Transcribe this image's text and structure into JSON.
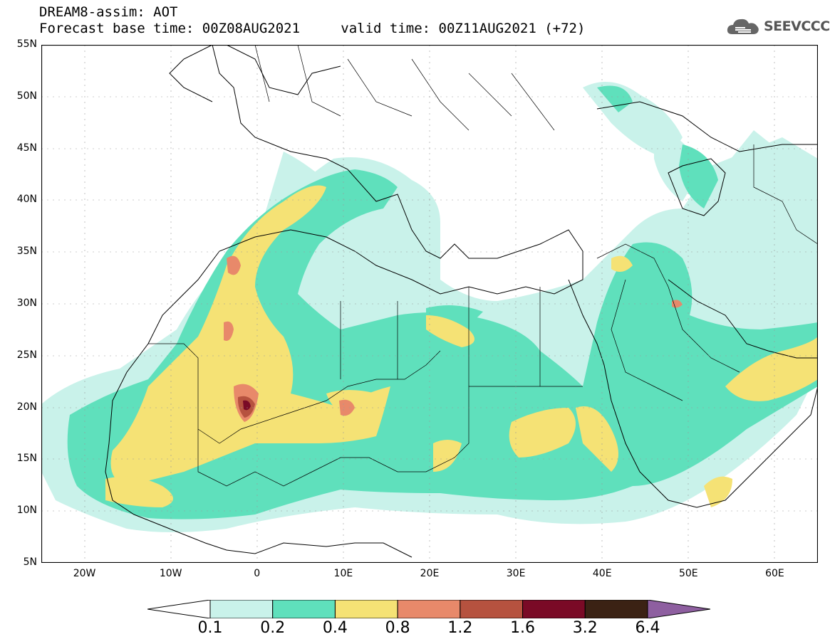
{
  "header": {
    "title": "DREAM8-assim: AOT",
    "base_time": "Forecast base time: 00Z08AUG2021",
    "valid_time": "valid time: 00Z11AUG2021 (+72)"
  },
  "logo": {
    "text": "SEEVCCC",
    "icon": "cloud-icon"
  },
  "map": {
    "lat_labels": [
      "55N",
      "50N",
      "45N",
      "40N",
      "35N",
      "30N",
      "25N",
      "20N",
      "15N",
      "10N",
      "5N"
    ],
    "lon_labels": [
      "20W",
      "10W",
      "0",
      "10E",
      "20E",
      "30E",
      "40E",
      "50E",
      "60E"
    ],
    "lon_range": [
      -25,
      65
    ],
    "lat_range": [
      5,
      55
    ]
  },
  "colorbar": {
    "labels": [
      "0.1",
      "0.2",
      "0.4",
      "0.8",
      "1.2",
      "1.6",
      "3.2",
      "6.4"
    ],
    "colors": [
      "#c9f2ea",
      "#5fe0bc",
      "#f5e275",
      "#e8896a",
      "#b6523f",
      "#7a0a26",
      "#3b2214",
      "#8e5fa0"
    ]
  },
  "colors": {
    "lev1": "#c9f2ea",
    "lev2": "#5fe0bc",
    "lev3": "#f5e275",
    "lev4": "#e8896a",
    "lev5": "#b6523f",
    "lev6": "#7a0a26"
  }
}
